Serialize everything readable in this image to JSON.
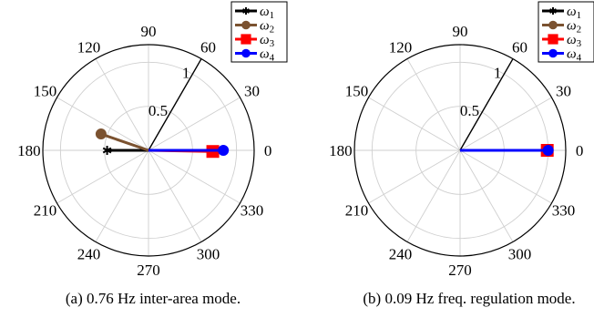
{
  "chart_data": [
    {
      "type": "polar",
      "caption": "(a) 0.76 Hz inter-area mode.",
      "angular_ticks": [
        "0",
        "30",
        "60",
        "90",
        "120",
        "150",
        "180",
        "210",
        "240",
        "270",
        "300",
        "330"
      ],
      "radial_ticks": [
        "0.5",
        "1"
      ],
      "rlim": [
        0,
        1.2
      ],
      "grid": true,
      "reference_line": {
        "angle_deg": 60,
        "r": 1.2
      },
      "legend_position": "top-right",
      "series": [
        {
          "name": "ω",
          "subscript": "1",
          "color": "#000000",
          "marker": "star",
          "angle_deg": 180,
          "magnitude": 0.47
        },
        {
          "name": "ω",
          "subscript": "2",
          "color": "#7b5230",
          "marker": "circle",
          "angle_deg": 161,
          "magnitude": 0.57
        },
        {
          "name": "ω",
          "subscript": "3",
          "color": "#ff0000",
          "marker": "square",
          "angle_deg": -1,
          "magnitude": 0.73
        },
        {
          "name": "ω",
          "subscript": "4",
          "color": "#0000ff",
          "marker": "circle",
          "angle_deg": 0,
          "magnitude": 0.85
        }
      ]
    },
    {
      "type": "polar",
      "caption": "(b) 0.09 Hz freq. regulation mode.",
      "angular_ticks": [
        "0",
        "30",
        "60",
        "90",
        "120",
        "150",
        "180",
        "210",
        "240",
        "270",
        "300",
        "330"
      ],
      "radial_ticks": [
        "0.5",
        "1"
      ],
      "rlim": [
        0,
        1.2
      ],
      "grid": true,
      "reference_line": {
        "angle_deg": 60,
        "r": 1.2
      },
      "legend_position": "top-right",
      "series": [
        {
          "name": "ω",
          "subscript": "1",
          "color": "#000000",
          "marker": "star",
          "angle_deg": 0,
          "magnitude": 0.97
        },
        {
          "name": "ω",
          "subscript": "2",
          "color": "#7b5230",
          "marker": "circle",
          "angle_deg": 0,
          "magnitude": 0.98
        },
        {
          "name": "ω",
          "subscript": "3",
          "color": "#ff0000",
          "marker": "square",
          "angle_deg": 0,
          "magnitude": 0.99
        },
        {
          "name": "ω",
          "subscript": "4",
          "color": "#0000ff",
          "marker": "circle",
          "angle_deg": 0,
          "magnitude": 1.0
        }
      ]
    }
  ]
}
